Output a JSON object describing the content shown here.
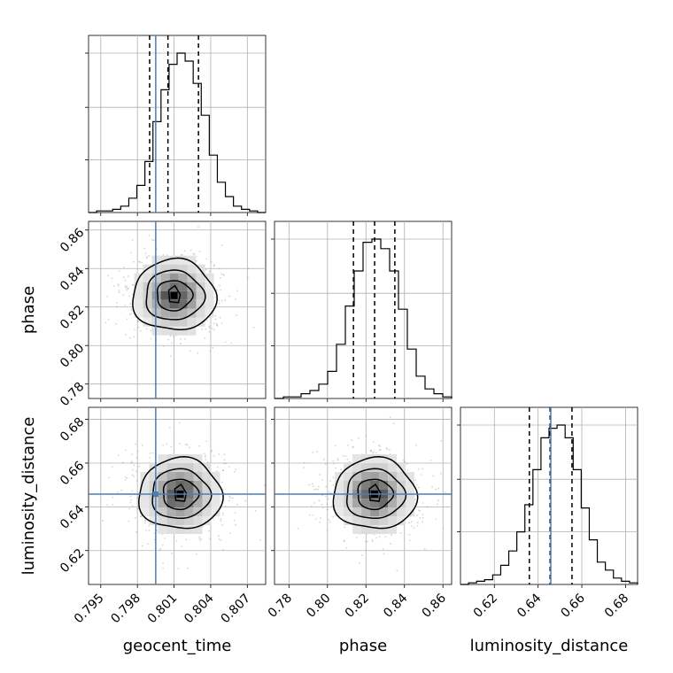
{
  "chart_data": {
    "type": "corner",
    "parameters": [
      "geocent_time",
      "phase",
      "luminosity_distance"
    ],
    "axis_labels": {
      "geocent_time": "geocent_time",
      "phase": "phase",
      "luminosity_distance": "luminosity_distance"
    },
    "ranges": {
      "geocent_time": [
        0.794,
        0.8085
      ],
      "phase": [
        0.7725,
        0.8645
      ],
      "luminosity_distance": [
        0.6045,
        0.6855
      ]
    },
    "ticks": {
      "geocent_time": [
        0.795,
        0.798,
        0.801,
        0.804,
        0.807
      ],
      "phase": [
        0.78,
        0.8,
        0.82,
        0.84,
        0.86
      ],
      "luminosity_distance": [
        0.62,
        0.64,
        0.66,
        0.68
      ]
    },
    "tick_labels": {
      "geocent_time": [
        "0.795",
        "0.798",
        "0.801",
        "0.804",
        "0.807"
      ],
      "phase": [
        "0.78",
        "0.80",
        "0.82",
        "0.84",
        "0.86"
      ],
      "luminosity_distance": [
        "0.62",
        "0.64",
        "0.66",
        "0.68"
      ]
    },
    "injection": {
      "geocent_time": 0.7995,
      "luminosity_distance": 0.6458
    },
    "quantiles": {
      "geocent_time": [
        0.799,
        0.8005,
        0.803
      ],
      "phase": [
        0.8135,
        0.8245,
        0.835
      ],
      "luminosity_distance": [
        0.636,
        0.6455,
        0.6555
      ]
    },
    "histograms": {
      "geocent_time": [
        0,
        1,
        1,
        2,
        4,
        9,
        17,
        32,
        57,
        77,
        93,
        100,
        95,
        81,
        61,
        36,
        19,
        10,
        4,
        2,
        1,
        0
      ],
      "phase": [
        0,
        1,
        1,
        3,
        5,
        9,
        17,
        34,
        58,
        80,
        98,
        100,
        94,
        80,
        56,
        31,
        14,
        6,
        3,
        1
      ],
      "luminosity_distance": [
        0,
        1,
        2,
        3,
        6,
        12,
        21,
        33,
        50,
        72,
        92,
        98,
        100,
        92,
        72,
        48,
        28,
        14,
        9,
        4,
        2,
        1
      ]
    },
    "center_2d": {
      "geocent_time-phase": [
        0.801,
        0.826
      ],
      "geocent_time-luminosity_distance": [
        0.8015,
        0.6458
      ],
      "phase-luminosity_distance": [
        0.8245,
        0.6458
      ]
    },
    "grid": true
  }
}
